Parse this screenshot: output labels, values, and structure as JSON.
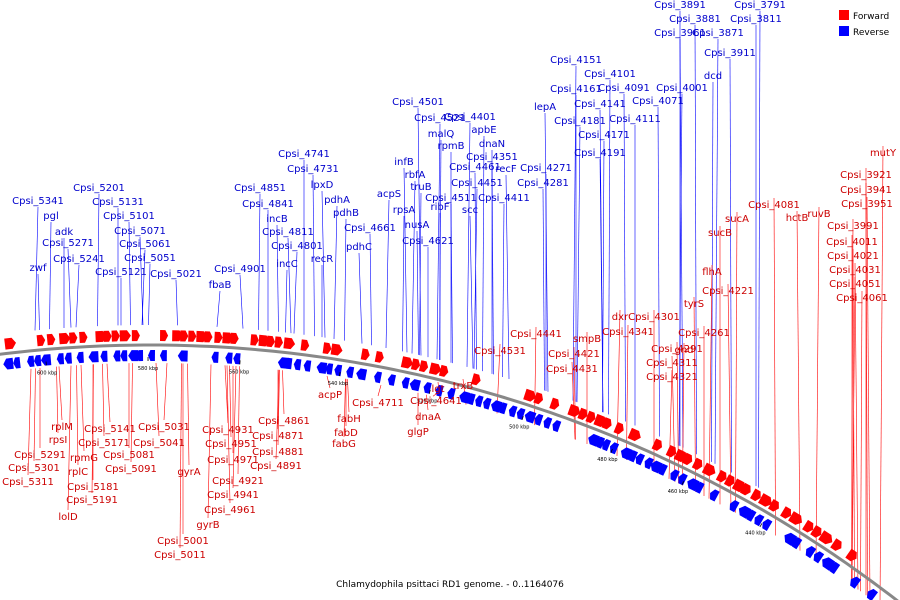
{
  "caption": "Chlamydophila psittaci RD1 genome. - 0..1164076",
  "legend": [
    {
      "label": "Forward",
      "color": "#ff0000"
    },
    {
      "label": "Reverse",
      "color": "#0000ff"
    }
  ],
  "colors": {
    "forward": "#ff0000",
    "reverse": "#0000ff",
    "forward_label": "#cc0000",
    "reverse_label": "#0000cc",
    "backbone": "#888888"
  },
  "scale_ticks": [
    "600 kbp",
    "580 kbp",
    "560 kbp",
    "540 kbp",
    "520 kbp",
    "500 kbp",
    "480 kbp",
    "460 kbp",
    "440 kbp"
  ],
  "reverse_labels": [
    "Cpsi_5341",
    "pgl",
    "adk",
    "zwf",
    "Cpsi_5271",
    "Cpsi_5241",
    "Cpsi_5201",
    "Cpsi_5131",
    "Cpsi_5101",
    "Cpsi_5071",
    "Cpsi_5061",
    "Cpsi_5051",
    "Cpsi_5121",
    "Cpsi_5021",
    "Cpsi_4901",
    "fbaB",
    "Cpsi_4851",
    "Cpsi_4841",
    "incB",
    "Cpsi_4811",
    "Cpsi_4801",
    "incC",
    "Cpsi_4741",
    "Cpsi_4731",
    "lpxD",
    "pdhA",
    "pdhB",
    "recR",
    "Cpsi_4661",
    "pdhC",
    "acpS",
    "rpsA",
    "Cpsi_4621",
    "nusA",
    "infB",
    "rbfA",
    "truB",
    "ribF",
    "Cpsi_4511",
    "Cpsi_4501",
    "Cpsi_4521",
    "malQ",
    "rpmB",
    "Cpsi_4461",
    "scc",
    "Cpsi_4401",
    "apbE",
    "dnaN",
    "Cpsi_4351",
    "recF",
    "Cpsi_4451",
    "Cpsi_4411",
    "Cpsi_4271",
    "Cpsi_4281",
    "lepA",
    "Cpsi_4151",
    "Cpsi_4101",
    "Cpsi_4161",
    "Cpsi_4091",
    "Cpsi_4141",
    "Cpsi_4181",
    "Cpsi_4171",
    "Cpsi_4111",
    "Cpsi_4071",
    "Cpsi_4191",
    "Cpsi_4001",
    "dcd",
    "Cpsi_3891",
    "Cpsi_3881",
    "Cpsi_3961",
    "Cpsi_3871",
    "Cpsi_3791",
    "Cpsi_3811",
    "Cpsi_3911"
  ],
  "forward_labels": [
    "rplM",
    "rpsI",
    "Cpsi_5291",
    "Cpsi_5301",
    "Cpsi_5311",
    "rpmG",
    "rplC",
    "Cpsi_5181",
    "Cpsi_5191",
    "lolD",
    "Cpsi_5141",
    "Cpsi_5171",
    "Cpsi_5081",
    "Cpsi_5091",
    "Cpsi_5031",
    "Cpsi_5041",
    "gyrA",
    "Cpsi_5001",
    "Cpsi_5011",
    "gyrB",
    "Cpsi_4931",
    "Cpsi_4951",
    "Cpsi_4971",
    "Cpsi_4921",
    "Cpsi_4941",
    "Cpsi_4961",
    "Cpsi_4861",
    "Cpsi_4871",
    "Cpsi_4881",
    "Cpsi_4891",
    "acpP",
    "fabH",
    "fabD",
    "fabG",
    "Cpsi_4711",
    "Cpsi_4641",
    "dnaA",
    "glgP",
    "lgt",
    "trxB",
    "Cpsi_4531",
    "Cpsi_4441",
    "smpB",
    "Cpsi_4421",
    "Cpsi_4431",
    "dxr",
    "Cpsi_4341",
    "Cpsi_4301",
    "Cpsi_4291",
    "Cpsi_4311",
    "Cpsi_4321",
    "gnd",
    "Cpsi_4261",
    "tyrS",
    "Cpsi_4221",
    "flhA",
    "sucA",
    "sucB",
    "Cpsi_4081",
    "hctB",
    "ruvB",
    "Cpsi_3991",
    "Cpsi_4011",
    "Cpsi_4021",
    "Cpsi_4031",
    "Cpsi_4051",
    "Cpsi_4061",
    "Cpsi_3921",
    "Cpsi_3941",
    "Cpsi_3951",
    "mutY"
  ]
}
